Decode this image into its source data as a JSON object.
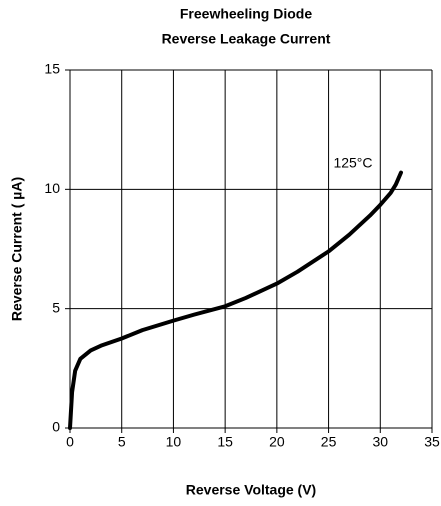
{
  "chart_data": {
    "type": "line",
    "title": [
      "Freewheeling Diode",
      "Reverse Leakage Current"
    ],
    "x_label": "Reverse Voltage (V)",
    "y_label": "Reverse Current ( µA)",
    "annotation": "125°C",
    "series": [
      {
        "name": "125°C",
        "color": "#000000",
        "x": [
          0,
          0.2,
          0.5,
          1,
          2,
          3,
          5,
          7,
          10,
          12,
          15,
          17,
          20,
          22,
          25,
          27,
          29,
          30,
          31,
          31.5,
          32
        ],
        "values": [
          0,
          1.5,
          2.4,
          2.9,
          3.25,
          3.45,
          3.75,
          4.1,
          4.5,
          4.75,
          5.1,
          5.45,
          6.05,
          6.55,
          7.4,
          8.1,
          8.9,
          9.35,
          9.85,
          10.2,
          10.7
        ]
      }
    ],
    "xlim": [
      0,
      35
    ],
    "xticks": [
      0,
      5,
      10,
      15,
      20,
      25,
      30,
      35
    ],
    "ylim": [
      0,
      15
    ],
    "yticks": [
      0,
      5,
      10,
      15
    ],
    "grid": true
  }
}
